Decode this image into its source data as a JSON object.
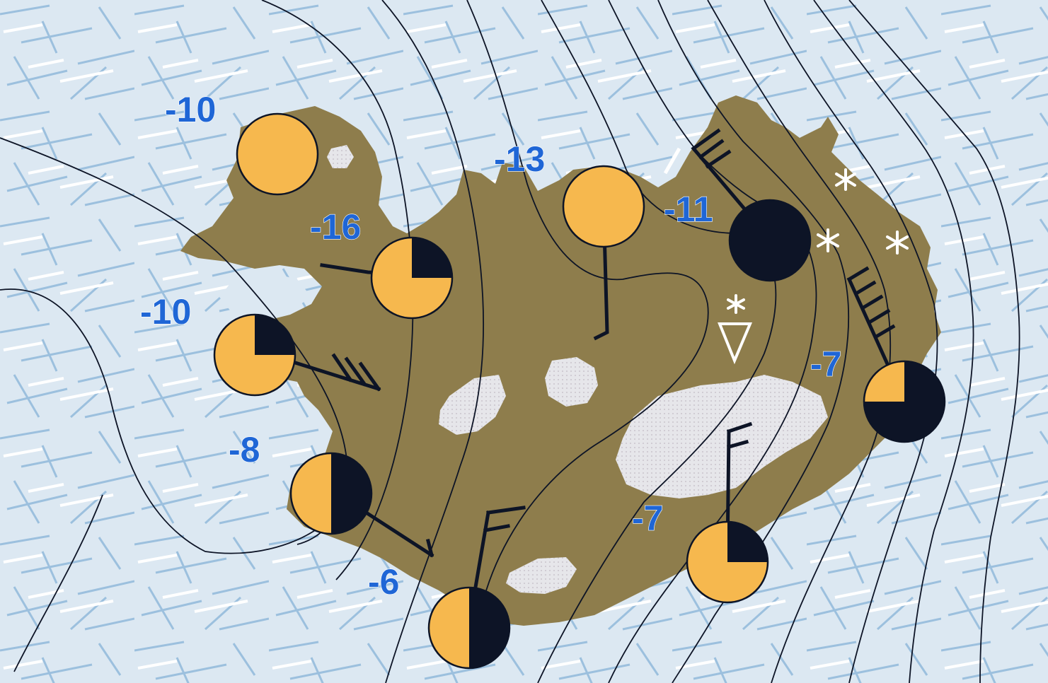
{
  "colors": {
    "sea": "#dce8f2",
    "ice_streak": "#9cc0de",
    "land": "#8e7d4c",
    "glacier": "#e6e6ea",
    "cloud_clear": "#f6b84e",
    "cloud_cover": "#0d1426",
    "temperature_text": "#1f66d6",
    "isobar": "#0d1426"
  },
  "stations": [
    {
      "id": "nw-tip",
      "temperature": "-10",
      "cloud_cover_fraction": 0,
      "wind_barbs": 0
    },
    {
      "id": "westfjords-south",
      "temperature": "-16",
      "cloud_cover_fraction": 0.25,
      "wind_barbs": 0
    },
    {
      "id": "snaefellsnes",
      "temperature": "-10",
      "cloud_cover_fraction": 0.25,
      "wind_barbs": 3
    },
    {
      "id": "southwest",
      "temperature": "-8",
      "cloud_cover_fraction": 0.5,
      "wind_barbs": 0
    },
    {
      "id": "south",
      "temperature": "-6",
      "cloud_cover_fraction": 0.5,
      "wind_barbs": 2
    },
    {
      "id": "north",
      "temperature": "-13",
      "cloud_cover_fraction": 0,
      "wind_barbs": 0
    },
    {
      "id": "northeast",
      "temperature": "-11",
      "cloud_cover_fraction": 1,
      "wind_barbs": 3
    },
    {
      "id": "east",
      "temperature": "-7",
      "cloud_cover_fraction": 0.75,
      "wind_barbs": 5
    },
    {
      "id": "southeast",
      "temperature": "-7",
      "cloud_cover_fraction": 0.25,
      "wind_barbs": 2
    }
  ],
  "weather_symbols": [
    "snow-shower-icon",
    "snowflake-icon"
  ]
}
